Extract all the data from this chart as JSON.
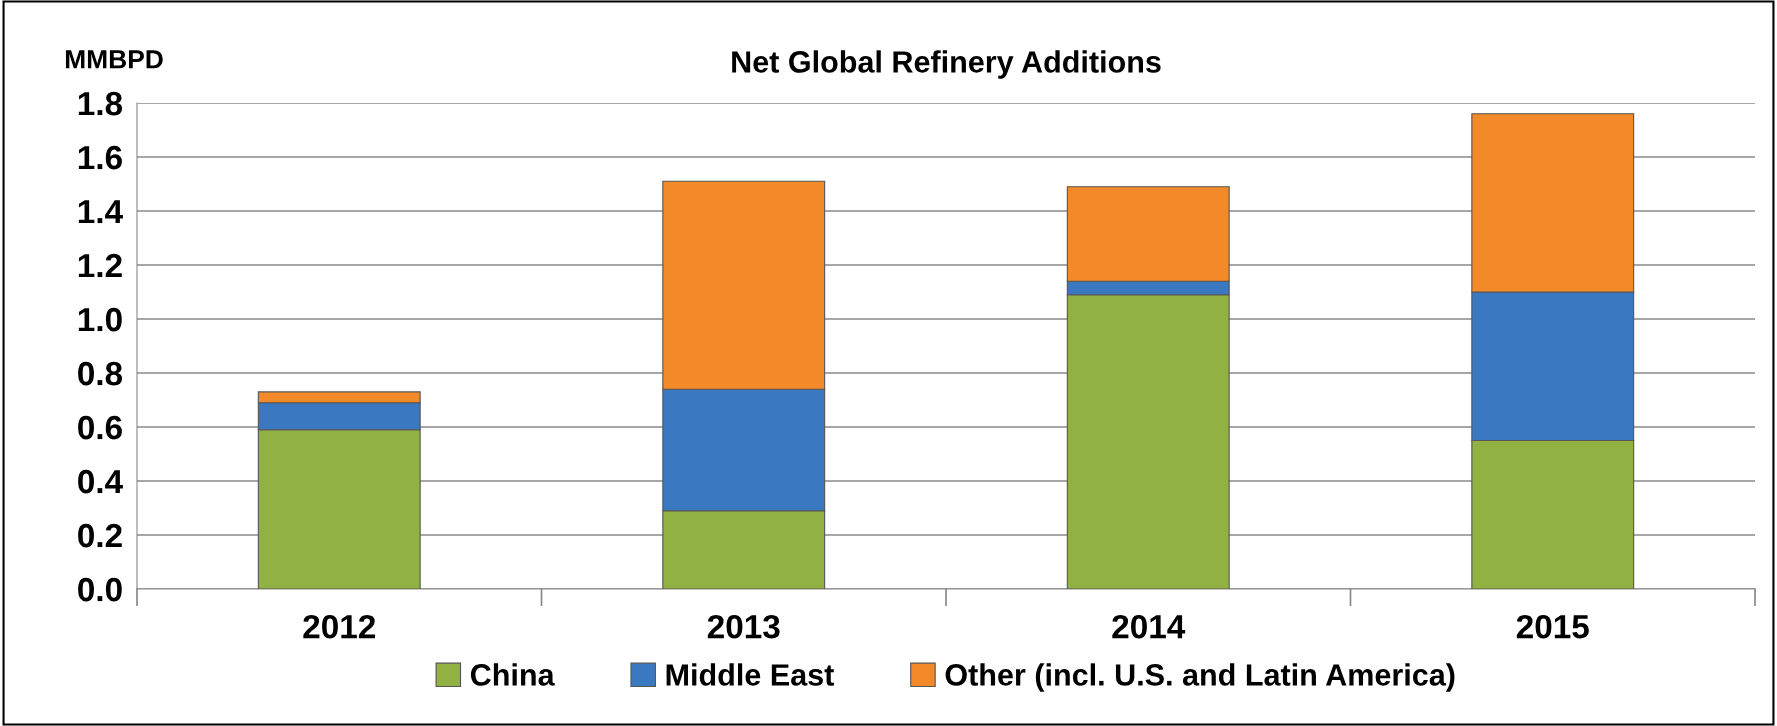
{
  "chart_data": {
    "type": "bar",
    "title": "Net Global Refinery Additions",
    "ylabel": "MMBPD",
    "categories": [
      "2012",
      "2013",
      "2014",
      "2015"
    ],
    "series": [
      {
        "name": "China",
        "color": "#92b143",
        "values": [
          0.59,
          0.29,
          1.09,
          0.55
        ]
      },
      {
        "name": "Middle East",
        "color": "#3a78c2",
        "values": [
          0.1,
          0.45,
          0.05,
          0.55
        ]
      },
      {
        "name": "Other (incl. U.S. and Latin America)",
        "color": "#f28a2a",
        "values": [
          0.04,
          0.77,
          0.35,
          0.66
        ]
      }
    ],
    "stacked": true,
    "ylim": [
      0,
      1.8
    ],
    "yticks": [
      {
        "value": 0,
        "label": "0.0"
      },
      {
        "value": 0.2,
        "label": "0.2"
      },
      {
        "value": 0.4,
        "label": "0.4"
      },
      {
        "value": 0.6,
        "label": "0.6"
      },
      {
        "value": 0.8,
        "label": "0.8"
      },
      {
        "value": 1.0,
        "label": "1.0"
      },
      {
        "value": 1.2,
        "label": "1.2"
      },
      {
        "value": 1.4,
        "label": "1.4"
      },
      {
        "value": 1.6,
        "label": "1.6"
      },
      {
        "value": 1.8,
        "label": "1.8"
      }
    ],
    "grid": "y",
    "legend": "bottom"
  }
}
